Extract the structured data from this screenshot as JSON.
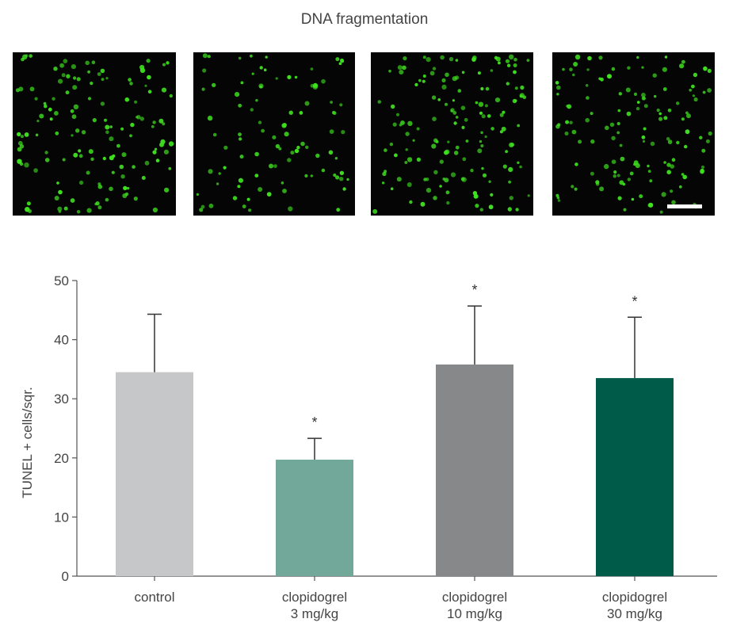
{
  "figure": {
    "title": "DNA fragmentation"
  },
  "micrographs": [
    {
      "name": "control",
      "seed": 11,
      "count": 140
    },
    {
      "name": "clopidogrel 3 mg/kg",
      "seed": 29,
      "count": 95
    },
    {
      "name": "clopidogrel 10 mg/kg",
      "seed": 47,
      "count": 150
    },
    {
      "name": "clopidogrel 30 mg/kg",
      "seed": 83,
      "count": 135,
      "scale_bar": true
    }
  ],
  "colors": {
    "fluorescence": "#3fe21f",
    "panel_background": "#050505"
  },
  "chart_data": {
    "type": "bar",
    "title": "",
    "xlabel": "",
    "ylabel": "TUNEL + cells/sqr.",
    "ylim": [
      0,
      50
    ],
    "yticks": [
      0,
      10,
      20,
      30,
      40,
      50
    ],
    "grid": false,
    "categories": [
      [
        "control"
      ],
      [
        "clopidogrel",
        "3 mg/kg"
      ],
      [
        "clopidogrel",
        "10 mg/kg"
      ],
      [
        "clopidogrel",
        "30 mg/kg"
      ]
    ],
    "values": [
      34.5,
      19.7,
      35.8,
      33.5
    ],
    "errors": [
      9.8,
      3.6,
      9.9,
      10.3
    ],
    "significance": [
      "",
      "*",
      "*",
      "*"
    ],
    "colors": [
      "#c6c7c9",
      "#72a89a",
      "#87888a",
      "#005c49"
    ]
  }
}
